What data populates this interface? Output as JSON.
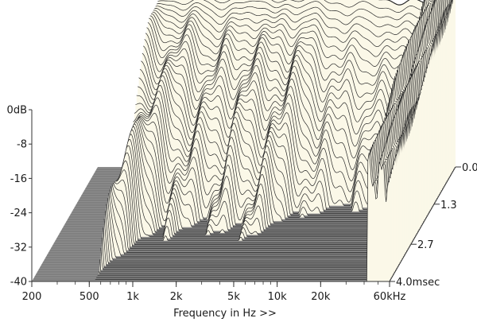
{
  "chart_data": {
    "type": "waterfall",
    "title": "",
    "xlabel": "Frequency in Hz >>",
    "ylabel": "",
    "zlabel": "",
    "x_scale": "log",
    "xlim": [
      200,
      60000
    ],
    "ylim": [
      -40,
      0
    ],
    "zlim": [
      0,
      4.0
    ],
    "x_ticks": [
      {
        "value": 200,
        "label": "200"
      },
      {
        "value": 500,
        "label": "500"
      },
      {
        "value": 1000,
        "label": "1k"
      },
      {
        "value": 2000,
        "label": "2k"
      },
      {
        "value": 5000,
        "label": "5k"
      },
      {
        "value": 10000,
        "label": "10k"
      },
      {
        "value": 20000,
        "label": "20k"
      },
      {
        "value": 60000,
        "label": "60kHz"
      }
    ],
    "y_ticks": [
      {
        "value": 0,
        "label": "0dB"
      },
      {
        "value": -8,
        "label": "-8"
      },
      {
        "value": -16,
        "label": "-16"
      },
      {
        "value": -24,
        "label": "-24"
      },
      {
        "value": -32,
        "label": "-32"
      },
      {
        "value": -40,
        "label": "-40"
      }
    ],
    "z_ticks": [
      {
        "value": 0.0,
        "label": "0.0"
      },
      {
        "value": 1.3,
        "label": "1.3"
      },
      {
        "value": 2.7,
        "label": "2.7"
      },
      {
        "value": 4.0,
        "label": "4.0msec"
      }
    ],
    "initial_response_db": {
      "x": [
        540,
        800,
        1200,
        2000,
        3000,
        5000,
        7000,
        10000,
        15000,
        20000,
        30000,
        40000
      ],
      "y": [
        0.5,
        0.3,
        0.6,
        0.8,
        0.5,
        0.2,
        0.5,
        0.1,
        -0.8,
        -1.0,
        -1.5,
        -2.2
      ]
    },
    "slice_count": 60,
    "colors": {
      "surface": "#fbf8e8",
      "line": "#2a2a2a",
      "floor": "#8c8c8c",
      "floor_line": "#5a5a5a"
    }
  }
}
